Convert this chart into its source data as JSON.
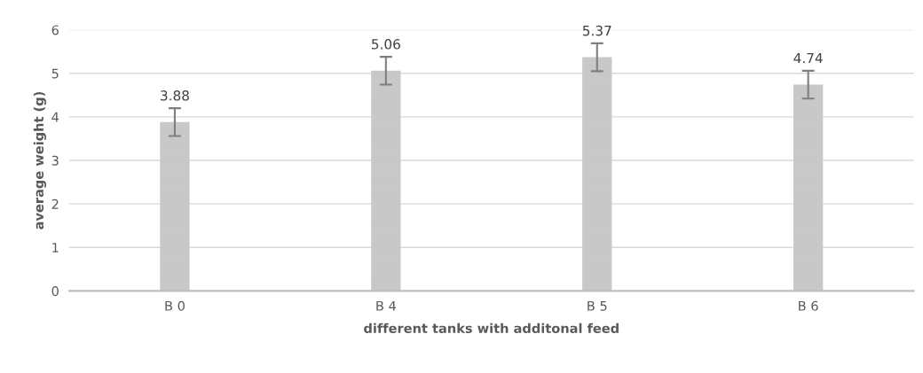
{
  "chart_data": {
    "type": "bar",
    "xlabel": "different tanks with additonal feed",
    "ylabel": "average weight (g)",
    "categories": [
      "B 0",
      "B 4",
      "B 5",
      "B 6"
    ],
    "values": [
      3.88,
      5.06,
      5.37,
      4.74
    ],
    "errors": [
      0.32,
      0.32,
      0.32,
      0.32
    ],
    "color": "#c8c8c8",
    "ylim": [
      0,
      6
    ],
    "yticks": [
      0,
      1,
      2,
      3,
      4,
      5,
      6
    ],
    "grid": "y",
    "data_labels": true
  }
}
